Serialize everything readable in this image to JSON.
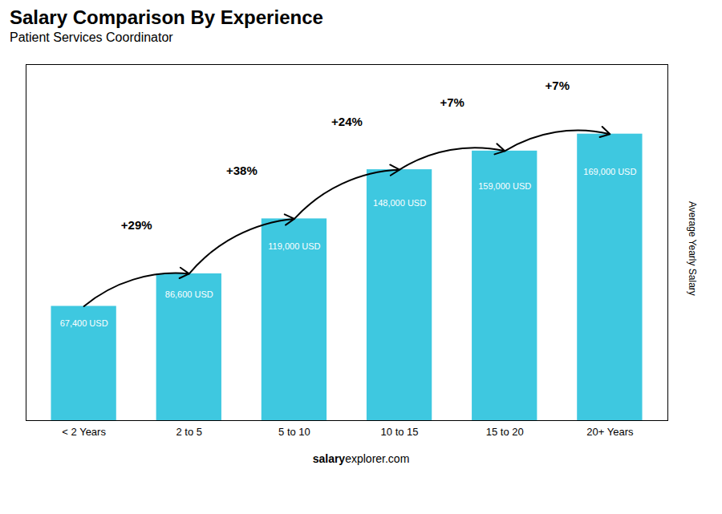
{
  "chart_data": {
    "type": "bar",
    "title": "Salary Comparison By Experience",
    "subtitle": "Patient Services Coordinator",
    "categories": [
      "< 2 Years",
      "2 to 5",
      "5 to 10",
      "10 to 15",
      "15 to 20",
      "20+ Years"
    ],
    "values": [
      67400,
      86600,
      119000,
      148000,
      159000,
      169000
    ],
    "value_labels": [
      "67,400 USD",
      "86,600 USD",
      "119,000 USD",
      "148,000 USD",
      "159,000 USD",
      "169,000 USD"
    ],
    "data_labels": true,
    "pct_changes": [
      "+29%",
      "+38%",
      "+24%",
      "+7%",
      "+7%"
    ],
    "color": "#3EC8E0",
    "ylabel": "Average Yearly Salary",
    "footer": [
      "salary",
      "explorer.com"
    ],
    "ylim": [
      0,
      210000
    ],
    "yticks": [],
    "tick_labels": "x"
  }
}
